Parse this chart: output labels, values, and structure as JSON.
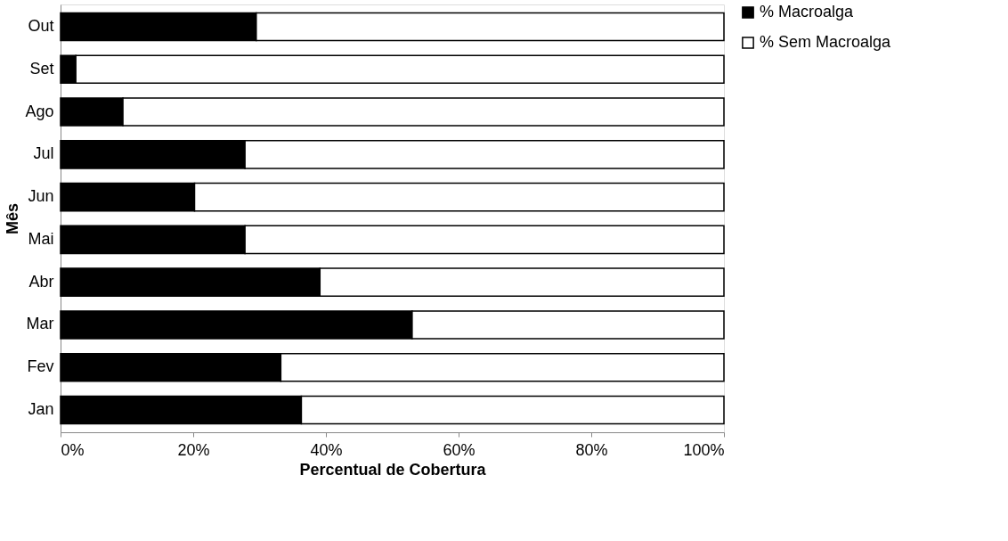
{
  "chart_data": {
    "type": "bar",
    "orientation": "horizontal",
    "stacked": true,
    "xlabel": "Percentual de Cobertura",
    "ylabel": "Mês",
    "categories": [
      "Out",
      "Set",
      "Ago",
      "Jul",
      "Jun",
      "Mai",
      "Abr",
      "Mar",
      "Fev",
      "Jan"
    ],
    "series": [
      {
        "name": "% Macroalga",
        "color": "#000000",
        "values": [
          29.5,
          2.3,
          9.4,
          27.8,
          20.2,
          27.8,
          39.1,
          53.0,
          33.2,
          36.3
        ]
      },
      {
        "name": "% Sem Macroalga",
        "color": "#ffffff",
        "values": [
          70.5,
          97.7,
          90.6,
          72.2,
          79.8,
          72.2,
          60.9,
          47.0,
          66.8,
          63.7
        ]
      }
    ],
    "xlim": [
      0,
      100
    ],
    "xticks": [
      {
        "value": 0,
        "label": "0%"
      },
      {
        "value": 20,
        "label": "20%"
      },
      {
        "value": 40,
        "label": "40%"
      },
      {
        "value": 60,
        "label": "60%"
      },
      {
        "value": 80,
        "label": "80%"
      },
      {
        "value": 100,
        "label": "100%"
      }
    ],
    "grid": false,
    "legend": "right"
  }
}
